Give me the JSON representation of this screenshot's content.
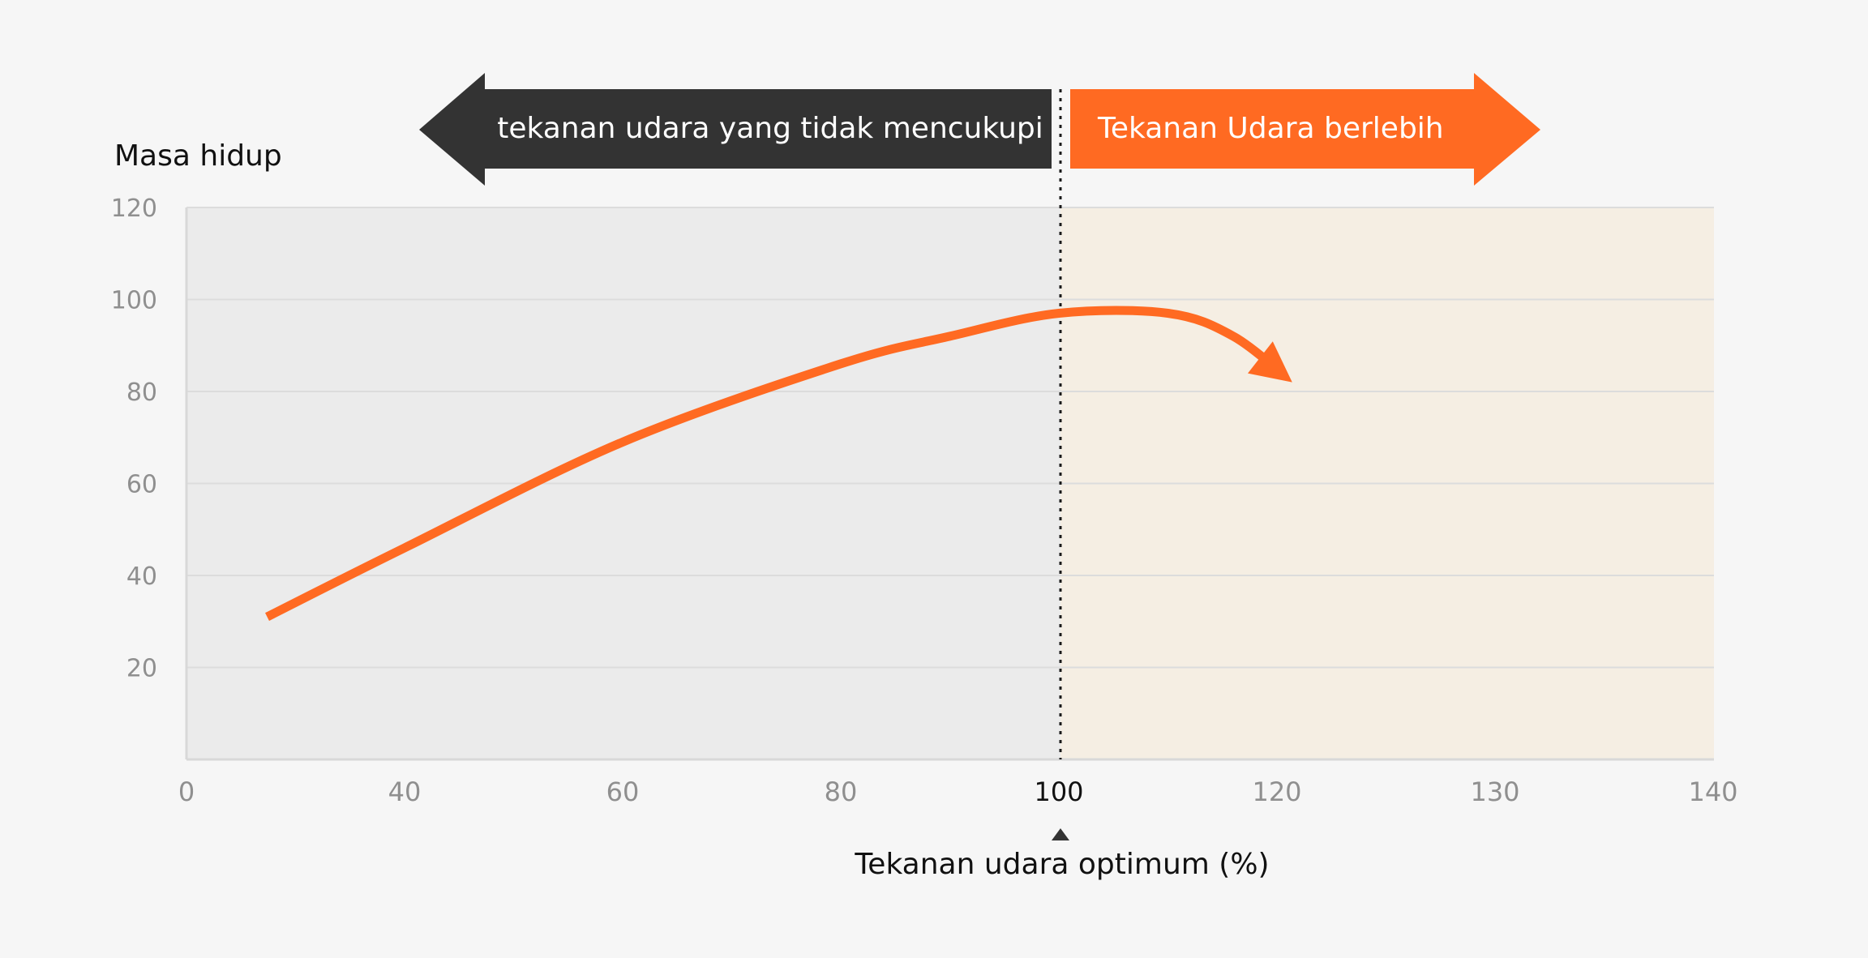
{
  "chart_data": {
    "type": "line",
    "title": "",
    "ylabel": "Masa hidup",
    "xlabel": "Tekanan udara optimum (%)",
    "x_ticks": [
      "0",
      "40",
      "60",
      "80",
      "100",
      "120",
      "130",
      "140"
    ],
    "y_ticks": [
      "20",
      "40",
      "60",
      "80",
      "100",
      "120"
    ],
    "ylim": [
      0,
      120
    ],
    "grid": true,
    "highlight_tick": "100",
    "regions": [
      {
        "label": "tekanan udara yang tidak mencukupi",
        "color": "#333333",
        "fill": "#ebebeb"
      },
      {
        "label": "Tekanan Udara berlebih",
        "color": "#ff6a22",
        "fill": "#f5eee3"
      }
    ],
    "series": [
      {
        "color": "#ff6a22",
        "x_index": [
          0.37,
          1.0,
          2.0,
          3.0,
          3.5,
          4.0,
          4.5,
          4.8,
          5.07
        ],
        "y": [
          31,
          46,
          69,
          86,
          92,
          97,
          97,
          92,
          82
        ],
        "end_arrow": true
      }
    ],
    "optimum_marker_x_index": 4
  }
}
